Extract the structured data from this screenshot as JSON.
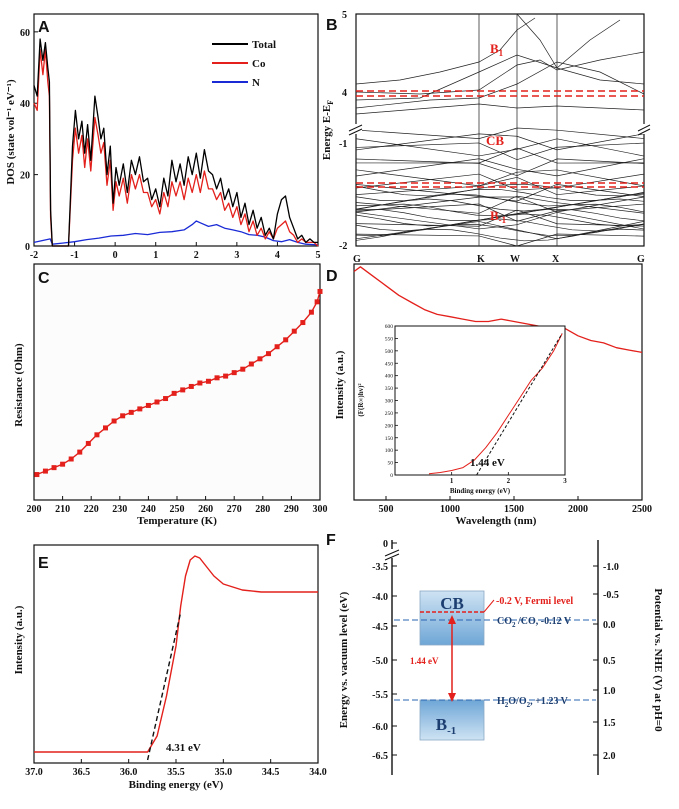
{
  "colors": {
    "total": "#000000",
    "co": "#e3201b",
    "n": "#1a2bd6",
    "accent": "#e3201b",
    "band": "#8bbbe0",
    "dashed": "#2a63b0"
  },
  "chart_data": [
    {
      "panel": "A",
      "type": "line",
      "ylabel": "DOS (state vol⁻¹ eV⁻¹)",
      "xlabel": "",
      "xlim": [
        -2,
        5
      ],
      "ylim": [
        0,
        65
      ],
      "xticks": [
        "-2",
        "-1",
        "0",
        "1",
        "2",
        "3",
        "4",
        "5"
      ],
      "yticks": [
        "0",
        "20",
        "40",
        "60"
      ],
      "series": [
        {
          "name": "Total",
          "x": [
            -2,
            -1.92,
            -1.85,
            -1.78,
            -1.72,
            -1.66,
            -1.62,
            -1.59,
            -1.55,
            -1.35,
            -1.15,
            -1.05,
            -0.98,
            -0.9,
            -0.82,
            -0.75,
            -0.68,
            -0.6,
            -0.5,
            -0.42,
            -0.35,
            -0.28,
            -0.2,
            -0.12,
            -0.05,
            0.02,
            0.1,
            0.2,
            0.3,
            0.4,
            0.5,
            0.6,
            0.7,
            0.8,
            0.9,
            1.0,
            1.1,
            1.2,
            1.3,
            1.4,
            1.5,
            1.6,
            1.7,
            1.8,
            1.9,
            2.0,
            2.1,
            2.2,
            2.3,
            2.4,
            2.5,
            2.6,
            2.7,
            2.8,
            2.9,
            3.0,
            3.1,
            3.2,
            3.3,
            3.4,
            3.5,
            3.6,
            3.7,
            3.8,
            3.9,
            4.0,
            4.1,
            4.2,
            4.3,
            4.4,
            4.5,
            4.6,
            4.7,
            4.8,
            4.9,
            5.0
          ],
          "y": [
            45,
            42,
            58,
            52,
            57,
            50,
            46,
            10,
            0,
            0,
            0,
            28,
            38,
            30,
            35,
            26,
            34,
            24,
            42,
            36,
            30,
            33,
            20,
            28,
            12,
            22,
            17,
            23,
            15,
            24,
            20,
            25,
            18,
            19,
            13,
            16,
            11,
            19,
            14,
            24,
            18,
            23,
            17,
            25,
            20,
            26,
            19,
            27,
            21,
            20,
            16,
            19,
            13,
            16,
            11,
            15,
            8,
            12,
            6,
            10,
            5,
            8,
            3,
            5,
            2,
            9,
            13,
            14,
            8,
            5,
            2,
            3,
            1,
            2,
            1,
            1
          ]
        },
        {
          "name": "Co",
          "x": [
            -2,
            -1.92,
            -1.85,
            -1.78,
            -1.72,
            -1.66,
            -1.62,
            -1.59,
            -1.55,
            -1.35,
            -1.15,
            -1.05,
            -0.98,
            -0.9,
            -0.82,
            -0.75,
            -0.68,
            -0.6,
            -0.5,
            -0.42,
            -0.35,
            -0.28,
            -0.2,
            -0.12,
            -0.05,
            0.02,
            0.1,
            0.2,
            0.3,
            0.4,
            0.5,
            0.6,
            0.7,
            0.8,
            0.9,
            1.0,
            1.1,
            1.2,
            1.3,
            1.4,
            1.5,
            1.6,
            1.7,
            1.8,
            1.9,
            2.0,
            2.1,
            2.2,
            2.3,
            2.4,
            2.5,
            2.6,
            2.7,
            2.8,
            2.9,
            3.0,
            3.1,
            3.2,
            3.3,
            3.4,
            3.5,
            3.6,
            3.7,
            3.8,
            3.9,
            4.0,
            4.1,
            4.2,
            4.3,
            4.4,
            4.5,
            4.6,
            4.7,
            4.8,
            4.9,
            5.0
          ],
          "y": [
            40,
            38,
            55,
            48,
            55,
            46,
            42,
            8,
            0,
            0,
            0,
            24,
            33,
            26,
            31,
            22,
            30,
            21,
            36,
            31,
            26,
            29,
            17,
            24,
            10,
            18,
            14,
            19,
            12,
            20,
            16,
            20,
            15,
            15,
            11,
            13,
            9,
            15,
            11,
            18,
            14,
            18,
            13,
            19,
            15,
            20,
            15,
            21,
            16,
            16,
            13,
            15,
            10,
            12,
            8,
            11,
            6,
            9,
            4,
            7,
            3,
            5,
            2,
            4,
            2,
            5,
            6,
            7,
            4,
            3,
            1,
            2,
            1,
            1,
            1,
            0
          ]
        },
        {
          "name": "N",
          "x": [
            -2,
            -1.8,
            -1.6,
            -1.55,
            -1.3,
            -1.0,
            -0.7,
            -0.4,
            -0.1,
            0.2,
            0.5,
            0.8,
            1.1,
            1.4,
            1.7,
            1.9,
            2.0,
            2.1,
            2.3,
            2.5,
            2.7,
            2.9,
            3.1,
            3.3,
            3.5,
            3.7,
            3.9,
            4.1,
            4.3,
            4.5,
            4.7,
            5.0
          ],
          "y": [
            1,
            1.5,
            2,
            0.5,
            0.8,
            1.2,
            1.8,
            2.2,
            2.8,
            3,
            3.5,
            3.2,
            3.8,
            4,
            4.5,
            6,
            7,
            6.5,
            5.5,
            6,
            5,
            4.5,
            4,
            3.2,
            3,
            2.5,
            1.5,
            1.2,
            1.8,
            1,
            0.5,
            0.3
          ]
        }
      ]
    },
    {
      "panel": "B",
      "type": "line",
      "ylabel": "Energy E-E",
      "ylabel_sub": "F",
      "yticks_upper": [
        "4",
        "5"
      ],
      "yticks_lower": [
        "-2",
        "-1"
      ],
      "kpoints": [
        "G",
        "K",
        "W",
        "X",
        "G"
      ],
      "annotations": {
        "b1": "B",
        "b1_sub": "1",
        "cb": "CB",
        "bm1": "B",
        "bm1_sub": "-1"
      }
    },
    {
      "panel": "C",
      "type": "line",
      "xlabel": "Temperature (K)",
      "ylabel": "Resistance (Ohm)",
      "xlim": [
        200,
        300
      ],
      "xticks": [
        "200",
        "210",
        "220",
        "230",
        "240",
        "250",
        "260",
        "270",
        "280",
        "290",
        "300"
      ],
      "x": [
        201,
        204,
        207,
        210,
        213,
        216,
        219,
        222,
        225,
        228,
        231,
        234,
        237,
        240,
        243,
        246,
        249,
        252,
        255,
        258,
        261,
        264,
        267,
        270,
        273,
        276,
        279,
        282,
        285,
        288,
        291,
        294,
        297,
        299,
        300
      ],
      "y": [
        0.02,
        0.04,
        0.06,
        0.08,
        0.11,
        0.15,
        0.2,
        0.25,
        0.29,
        0.33,
        0.36,
        0.38,
        0.4,
        0.42,
        0.44,
        0.46,
        0.49,
        0.51,
        0.53,
        0.55,
        0.56,
        0.58,
        0.59,
        0.61,
        0.63,
        0.66,
        0.69,
        0.72,
        0.76,
        0.8,
        0.85,
        0.9,
        0.96,
        1.02,
        1.08
      ]
    },
    {
      "panel": "D",
      "type": "line",
      "xlabel": "Wavelength (nm)",
      "ylabel": "Intensity (a.u.)",
      "xlim": [
        250,
        2500
      ],
      "xticks": [
        "500",
        "1000",
        "1500",
        "2000",
        "2500"
      ],
      "x": [
        250,
        300,
        400,
        500,
        600,
        700,
        800,
        900,
        1000,
        1100,
        1200,
        1300,
        1400,
        1500,
        1600,
        1700,
        1800,
        1900,
        2000,
        2100,
        2200,
        2300,
        2400,
        2500
      ],
      "y": [
        0.96,
        0.98,
        0.94,
        0.9,
        0.86,
        0.83,
        0.8,
        0.78,
        0.77,
        0.76,
        0.75,
        0.75,
        0.76,
        0.75,
        0.74,
        0.73,
        0.71,
        0.72,
        0.69,
        0.67,
        0.66,
        0.64,
        0.63,
        0.62
      ],
      "inset": {
        "xlabel": "Binding energy (eV)",
        "ylabel": "(F(R∞)hv)²",
        "xlim": [
          0,
          3
        ],
        "ylim": [
          0,
          600
        ],
        "xticks": [
          "1",
          "2",
          "3"
        ],
        "yticks": [
          "0",
          "50",
          "100",
          "150",
          "200",
          "250",
          "300",
          "350",
          "400",
          "450",
          "500",
          "550",
          "600"
        ],
        "x": [
          0.6,
          0.8,
          1.0,
          1.2,
          1.4,
          1.6,
          1.8,
          2.0,
          2.2,
          2.4,
          2.6,
          2.8,
          2.95
        ],
        "y": [
          5,
          10,
          18,
          30,
          60,
          110,
          170,
          240,
          310,
          380,
          430,
          500,
          570
        ],
        "bandgap_label": "1.44 eV",
        "fit_x0": 1.44
      }
    },
    {
      "panel": "E",
      "type": "line",
      "xlabel": "Binding energy (eV)",
      "ylabel": "Intensity (a.u.)",
      "xlim": [
        37,
        34
      ],
      "xticks": [
        "37.0",
        "36.5",
        "36.0",
        "35.5",
        "35.0",
        "34.5",
        "34.0"
      ],
      "x": [
        37.0,
        36.5,
        36.0,
        35.8,
        35.7,
        35.6,
        35.5,
        35.45,
        35.4,
        35.35,
        35.3,
        35.25,
        35.2,
        35.1,
        35.0,
        34.8,
        34.6,
        34.4,
        34.2,
        34.0
      ],
      "y": [
        0.02,
        0.02,
        0.02,
        0.02,
        0.1,
        0.3,
        0.55,
        0.75,
        0.9,
        0.98,
        1.0,
        0.99,
        0.96,
        0.9,
        0.86,
        0.83,
        0.82,
        0.82,
        0.82,
        0.82
      ],
      "onset_label": "4.31 eV"
    },
    {
      "panel": "F",
      "type": "diagram",
      "ylabel_left": "Energy vs. vacuum level (eV)",
      "ylabel_right": "Potential vs. NHE (V) at pH=0",
      "left_ticks": [
        "0",
        "-3.5",
        "-4.0",
        "-4.5",
        "-5.0",
        "-5.5",
        "-6.0",
        "-6.5"
      ],
      "right_ticks": [
        "-1.0",
        "-0.5",
        "0.0",
        "0.5",
        "1.0",
        "1.5",
        "2.0"
      ],
      "cb": "CB",
      "bm1": "B",
      "bm1_sub": "-1",
      "fermi": "-0.2 V, Fermi level",
      "co2": "CO",
      "co2_sub": "2",
      "co2_rest": " /CO, -0.12 V",
      "h2o": "H",
      "h2o_sub": "2",
      "h2o_mid": "O/O",
      "h2o_sub2": "2",
      "h2o_rest": ", +1.23 V",
      "gap": "1.44 eV"
    }
  ],
  "panel_letters": [
    "A",
    "B",
    "C",
    "D",
    "E",
    "F"
  ]
}
